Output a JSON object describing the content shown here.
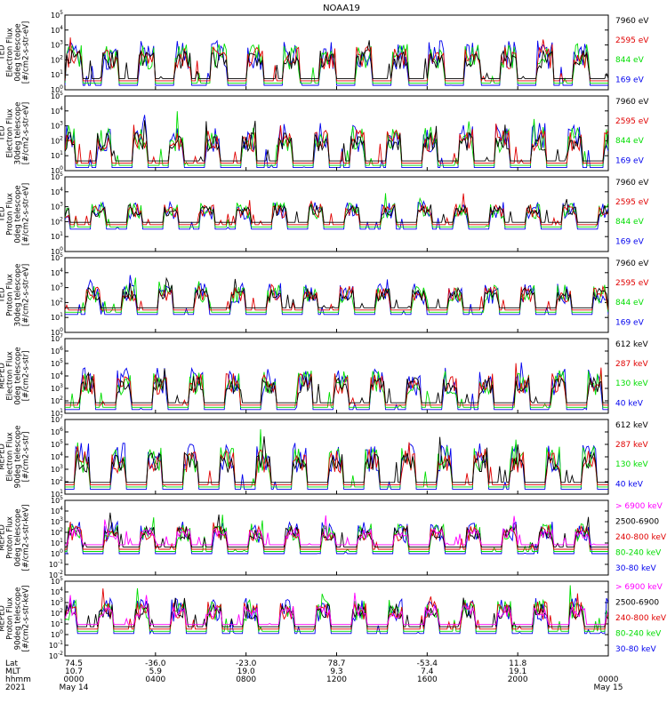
{
  "title": "NOAA19",
  "colors": {
    "black": "#000000",
    "red": "#e00000",
    "green": "#00dd00",
    "blue": "#0000ee",
    "magenta": "#ff00ff"
  },
  "chart_data": [
    {
      "type": "line",
      "ylabel": [
        "TED",
        "Electron Flux",
        "0deg telescope",
        "[#/cm2-s-str-eV]"
      ],
      "yticks": [
        "10^0",
        "10^1",
        "10^2",
        "10^3",
        "10^4",
        "10^5"
      ],
      "series": [
        {
          "name": "7960 eV",
          "color": "black"
        },
        {
          "name": "2595 eV",
          "color": "red"
        },
        {
          "name": "844 eV",
          "color": "green"
        },
        {
          "name": "169 eV",
          "color": "blue"
        }
      ],
      "base": 0.3,
      "amp": 4.0
    },
    {
      "type": "line",
      "ylabel": [
        "TED",
        "Electron Flux",
        "30deg telescope",
        "[#/cm2-s-str-eV]"
      ],
      "yticks": [
        "10^0",
        "10^1",
        "10^2",
        "10^3",
        "10^4",
        "10^5"
      ],
      "series": [
        {
          "name": "7960 eV",
          "color": "black"
        },
        {
          "name": "2595 eV",
          "color": "red"
        },
        {
          "name": "844 eV",
          "color": "green"
        },
        {
          "name": "169 eV",
          "color": "blue"
        }
      ],
      "base": 0.2,
      "amp": 4.0
    },
    {
      "type": "line",
      "ylabel": [
        "TED",
        "Proton Flux",
        "0deg telescope",
        "[#/cm2-s-str-eV]"
      ],
      "yticks": [
        "10^0",
        "10^1",
        "10^2",
        "10^3",
        "10^4",
        "10^5"
      ],
      "series": [
        {
          "name": "7960 eV",
          "color": "black"
        },
        {
          "name": "2595 eV",
          "color": "red"
        },
        {
          "name": "844 eV",
          "color": "green"
        },
        {
          "name": "169 eV",
          "color": "blue"
        }
      ],
      "base": 1.5,
      "amp": 2.5
    },
    {
      "type": "line",
      "ylabel": [
        "TED",
        "Proton Flux",
        "30deg telescope",
        "[#/cm2-s-str-eV]"
      ],
      "yticks": [
        "10^0",
        "10^1",
        "10^2",
        "10^3",
        "10^4",
        "10^5"
      ],
      "series": [
        {
          "name": "7960 eV",
          "color": "black"
        },
        {
          "name": "2595 eV",
          "color": "red"
        },
        {
          "name": "844 eV",
          "color": "green"
        },
        {
          "name": "169 eV",
          "color": "blue"
        }
      ],
      "base": 1.2,
      "amp": 2.8
    },
    {
      "type": "line",
      "ylabel": [
        "MEPED",
        "Electron Flux",
        "0deg telescope",
        "[#/cm2-s-str]"
      ],
      "yticks": [
        "10^1",
        "10^2",
        "10^3",
        "10^4",
        "10^5",
        "10^6",
        "10^7"
      ],
      "series": [
        {
          "name": "612 keV",
          "color": "black"
        },
        {
          "name": "287 keV",
          "color": "red"
        },
        {
          "name": "130 keV",
          "color": "green"
        },
        {
          "name": "40 keV",
          "color": "blue"
        }
      ],
      "base": 0.3,
      "amp": 4.5
    },
    {
      "type": "line",
      "ylabel": [
        "MEPED",
        "Electron Flux",
        "90deg telescope",
        "[#/cm2-s-str]"
      ],
      "yticks": [
        "10^1",
        "10^2",
        "10^3",
        "10^4",
        "10^5",
        "10^6",
        "10^7"
      ],
      "series": [
        {
          "name": "612 keV",
          "color": "black"
        },
        {
          "name": "287 keV",
          "color": "red"
        },
        {
          "name": "130 keV",
          "color": "green"
        },
        {
          "name": "40 keV",
          "color": "blue"
        }
      ],
      "base": 0.4,
      "amp": 5.0
    },
    {
      "type": "line",
      "ylabel": [
        "MEPED",
        "Proton Flux",
        "0deg telescope",
        "[#/cm2-s-str-keV]"
      ],
      "yticks": [
        "10^-2",
        "10^-1",
        "10^0",
        "10^1",
        "10^2",
        "10^3",
        "10^4",
        "10^5"
      ],
      "series": [
        {
          "name": "> 6900 keV",
          "color": "magenta"
        },
        {
          "name": "2500-6900",
          "color": "black"
        },
        {
          "name": "240-800 keV",
          "color": "red"
        },
        {
          "name": "80-240 keV",
          "color": "green"
        },
        {
          "name": "30-80 keV",
          "color": "blue"
        }
      ],
      "base": 2.0,
      "amp": 4.0
    },
    {
      "type": "line",
      "ylabel": [
        "MEPED",
        "Proton Flux",
        "90deg telescope",
        "[#/cm2-s-str-keV]"
      ],
      "yticks": [
        "10^-2",
        "10^-1",
        "10^0",
        "10^1",
        "10^2",
        "10^3",
        "10^4",
        "10^5"
      ],
      "series": [
        {
          "name": "> 6900 keV",
          "color": "magenta"
        },
        {
          "name": "2500-6900",
          "color": "black"
        },
        {
          "name": "240-800 keV",
          "color": "red"
        },
        {
          "name": "80-240 keV",
          "color": "green"
        },
        {
          "name": "30-80 keV",
          "color": "blue"
        }
      ],
      "base": 2.1,
      "amp": 4.5
    }
  ],
  "x_axis": {
    "row_labels": [
      "Lat",
      "MLT",
      "hhmm",
      "2021"
    ],
    "columns": [
      {
        "lat": "74.5",
        "mlt": "10.7",
        "hhmm": "0000",
        "date": "May 14"
      },
      {
        "lat": "-36.0",
        "mlt": "5.9",
        "hhmm": "0400",
        "date": ""
      },
      {
        "lat": "-23.0",
        "mlt": "19.0",
        "hhmm": "0800",
        "date": ""
      },
      {
        "lat": "78.7",
        "mlt": "9.3",
        "hhmm": "1200",
        "date": ""
      },
      {
        "lat": "-53.4",
        "mlt": "7.4",
        "hhmm": "1600",
        "date": ""
      },
      {
        "lat": "11.8",
        "mlt": "19.1",
        "hhmm": "2000",
        "date": ""
      },
      {
        "lat": "",
        "mlt": "",
        "hhmm": "0000",
        "date": "May 15"
      }
    ]
  }
}
